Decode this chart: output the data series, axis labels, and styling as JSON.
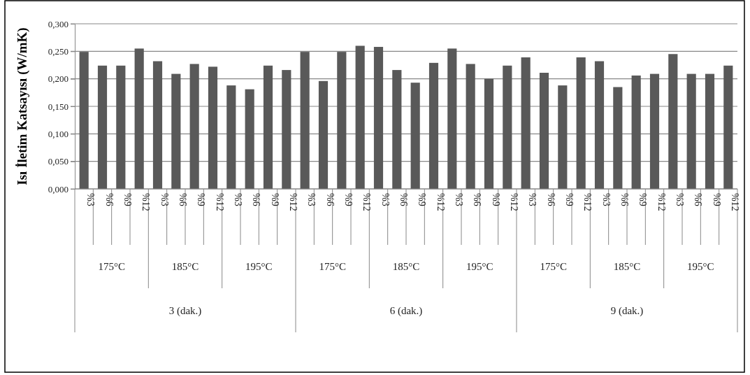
{
  "chart_data": {
    "type": "bar",
    "ylabel": "Isı İletim Katsayısı (W/mK)",
    "categories": [
      "%3",
      "%6",
      "%9",
      "%12",
      "%3",
      "%6",
      "%9",
      "%12",
      "%3",
      "%6",
      "%9",
      "%12",
      "%3",
      "%6",
      "%9",
      "%12",
      "%3",
      "%6",
      "%9",
      "%12",
      "%3",
      "%6",
      "%9",
      "%12",
      "%3",
      "%6",
      "%9",
      "%12",
      "%3",
      "%6",
      "%9",
      "%12",
      "%3",
      "%6",
      "%9",
      "%12"
    ],
    "values": [
      0.249,
      0.224,
      0.224,
      0.255,
      0.232,
      0.209,
      0.227,
      0.222,
      0.188,
      0.181,
      0.224,
      0.216,
      0.249,
      0.196,
      0.249,
      0.26,
      0.258,
      0.216,
      0.193,
      0.229,
      0.255,
      0.227,
      0.2,
      0.224,
      0.239,
      0.211,
      0.188,
      0.239,
      0.232,
      0.185,
      0.206,
      0.209,
      0.245,
      0.209,
      0.209,
      0.224
    ],
    "color": "#595959",
    "ylim": [
      0,
      0.3
    ],
    "yticks": [
      {
        "value": 0,
        "label": "0,000"
      },
      {
        "value": 0.05,
        "label": "0,050"
      },
      {
        "value": 0.1,
        "label": "0,100"
      },
      {
        "value": 0.15,
        "label": "0,150"
      },
      {
        "value": 0.2,
        "label": "0,200"
      },
      {
        "value": 0.25,
        "label": "0,250"
      },
      {
        "value": 0.3,
        "label": "0,300"
      }
    ],
    "grid": "y",
    "annotations": [
      "175°C",
      "185°C",
      "195°C",
      "175°C",
      "185°C",
      "195°C",
      "175°C",
      "185°C",
      "195°C",
      "3 (dak.)",
      "6 (dak.)",
      "9 (dak.)"
    ]
  }
}
